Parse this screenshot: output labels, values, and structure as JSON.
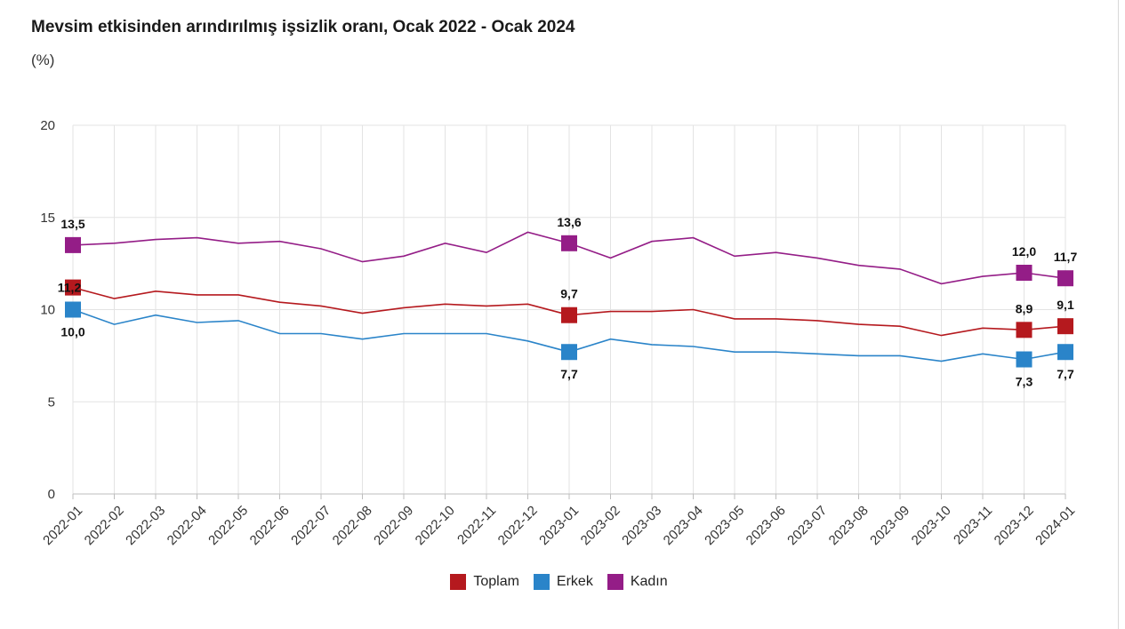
{
  "title": "Mevsim etkisinden arındırılmış işsizlik oranı, Ocak 2022 - Ocak 2024",
  "subtitle": "(%)",
  "chart_data": {
    "type": "line",
    "title": "Mevsim etkisinden arındırılmış işsizlik oranı, Ocak 2022 - Ocak 2024",
    "ylabel": "(%)",
    "xlabel": "",
    "ylim": [
      0,
      20
    ],
    "yticks": [
      0,
      5,
      10,
      15,
      20
    ],
    "grid": true,
    "legend_position": "bottom",
    "categories": [
      "2022-01",
      "2022-02",
      "2022-03",
      "2022-04",
      "2022-05",
      "2022-06",
      "2022-07",
      "2022-08",
      "2022-09",
      "2022-10",
      "2022-11",
      "2022-12",
      "2023-01",
      "2023-02",
      "2023-03",
      "2023-04",
      "2023-05",
      "2023-06",
      "2023-07",
      "2023-08",
      "2023-09",
      "2023-10",
      "2023-11",
      "2023-12",
      "2024-01"
    ],
    "series": [
      {
        "name": "Toplam",
        "color": "#b5191e",
        "values": [
          11.2,
          10.6,
          11.0,
          10.8,
          10.8,
          10.4,
          10.2,
          9.8,
          10.1,
          10.3,
          10.2,
          10.3,
          9.7,
          9.9,
          9.9,
          10.0,
          9.5,
          9.5,
          9.4,
          9.2,
          9.1,
          8.6,
          9.0,
          8.9,
          9.1
        ],
        "marked": [
          0,
          12,
          23,
          24
        ],
        "labels": {
          "0": "11,2",
          "12": "9,7",
          "23": "8,9",
          "24": "9,1"
        }
      },
      {
        "name": "Erkek",
        "color": "#2a84c9",
        "values": [
          10.0,
          9.2,
          9.7,
          9.3,
          9.4,
          8.7,
          8.7,
          8.4,
          8.7,
          8.7,
          8.7,
          8.3,
          7.7,
          8.4,
          8.1,
          8.0,
          7.7,
          7.7,
          7.6,
          7.5,
          7.5,
          7.2,
          7.6,
          7.3,
          7.7
        ],
        "marked": [
          0,
          12,
          23,
          24
        ],
        "labels": {
          "0": "10,0",
          "12": "7,7",
          "23": "7,3",
          "24": "7,7"
        }
      },
      {
        "name": "Kadın",
        "color": "#941d87",
        "values": [
          13.5,
          13.6,
          13.8,
          13.9,
          13.6,
          13.7,
          13.3,
          12.6,
          12.9,
          13.6,
          13.1,
          14.2,
          13.6,
          12.8,
          13.7,
          13.9,
          12.9,
          13.1,
          12.8,
          12.4,
          12.2,
          11.4,
          11.8,
          12.0,
          11.7
        ],
        "marked": [
          0,
          12,
          23,
          24
        ],
        "labels": {
          "0": "13,5",
          "12": "13,6",
          "23": "12,0",
          "24": "11,7"
        }
      }
    ]
  }
}
